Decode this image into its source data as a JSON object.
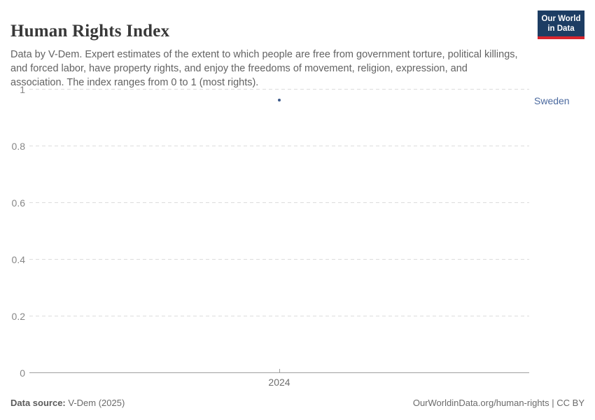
{
  "header": {
    "title": "Human Rights Index",
    "subtitle": "Data by V-Dem. Expert estimates of the extent to which people are free from government torture, political killings, and forced labor, have property rights, and enjoy the freedoms of movement, religion, expression, and association. The index ranges from 0 to 1 (most rights).",
    "logo": {
      "line1": "Our World",
      "line2": "in Data",
      "bg_color": "#1d3d63",
      "accent_color": "#d8252e"
    }
  },
  "chart_data": {
    "type": "scatter",
    "title": "Human Rights Index",
    "xlabel": "",
    "ylabel": "",
    "series": [
      {
        "name": "Sweden",
        "x": [
          2024
        ],
        "values": [
          0.96
        ],
        "point_color": "#3d5a8a",
        "label_color": "#4c6a9f"
      }
    ],
    "ylim": [
      0,
      1
    ],
    "yticks": [
      0,
      0.2,
      0.4,
      0.6,
      0.8,
      1
    ],
    "ytick_labels": [
      "0",
      "0.2",
      "0.4",
      "0.6",
      "0.8",
      "1"
    ],
    "xticks": [
      2024
    ],
    "xtick_labels": [
      "2024"
    ],
    "grid": "horizontal-dashed",
    "legend_position": "right-entity-label",
    "entity_label": "Sweden"
  },
  "footer": {
    "source_label": "Data source:",
    "source_value": " V-Dem (2025)",
    "credit": "OurWorldinData.org/human-rights | CC BY"
  }
}
